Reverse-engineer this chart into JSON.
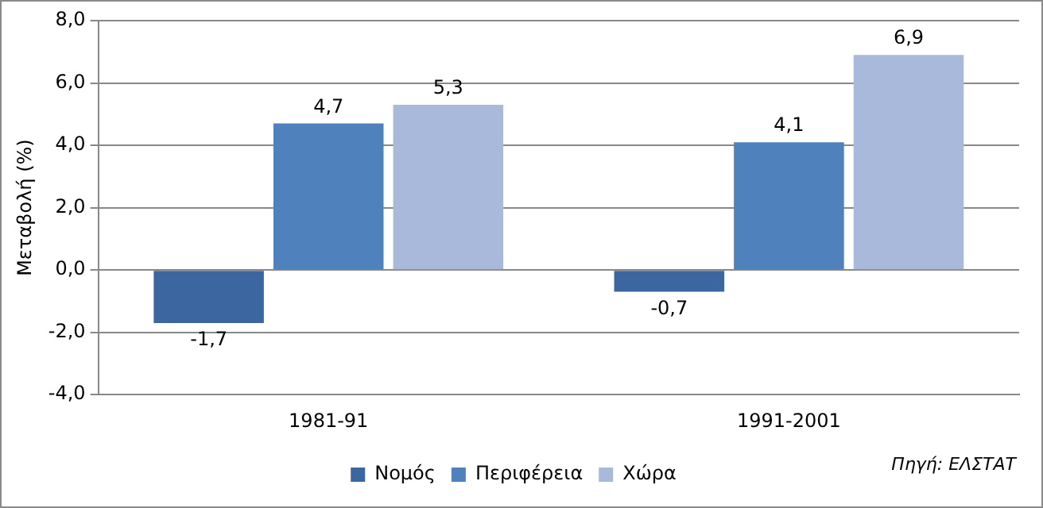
{
  "chart_data": {
    "type": "bar",
    "ylabel": "Μεταβολή (%)",
    "categories": [
      "1981-91",
      "1991-2001"
    ],
    "series": [
      {
        "name": "Νομός",
        "color": "#3c66a0",
        "values": [
          -1.7,
          -0.7
        ],
        "value_labels": [
          "-1,7",
          "-0,7"
        ]
      },
      {
        "name": "Περιφέρεια",
        "color": "#4f81bd",
        "values": [
          4.7,
          4.1
        ],
        "value_labels": [
          "4,7",
          "4,1"
        ]
      },
      {
        "name": "Χώρα",
        "color": "#a9b9db",
        "values": [
          5.3,
          6.9
        ],
        "value_labels": [
          "5,3",
          "6,9"
        ]
      }
    ],
    "ylim": [
      -4,
      8
    ],
    "yticks": [
      {
        "value": -4,
        "label": "-4,0"
      },
      {
        "value": -2,
        "label": "-2,0"
      },
      {
        "value": 0,
        "label": "0,0"
      },
      {
        "value": 2,
        "label": "2,0"
      },
      {
        "value": 4,
        "label": "4,0"
      },
      {
        "value": 6,
        "label": "6,0"
      },
      {
        "value": 8,
        "label": "8,0"
      }
    ],
    "grid": "y",
    "legend": "bottom",
    "annotations": [
      "Πηγή: ΕΛΣΤΑΤ"
    ]
  }
}
